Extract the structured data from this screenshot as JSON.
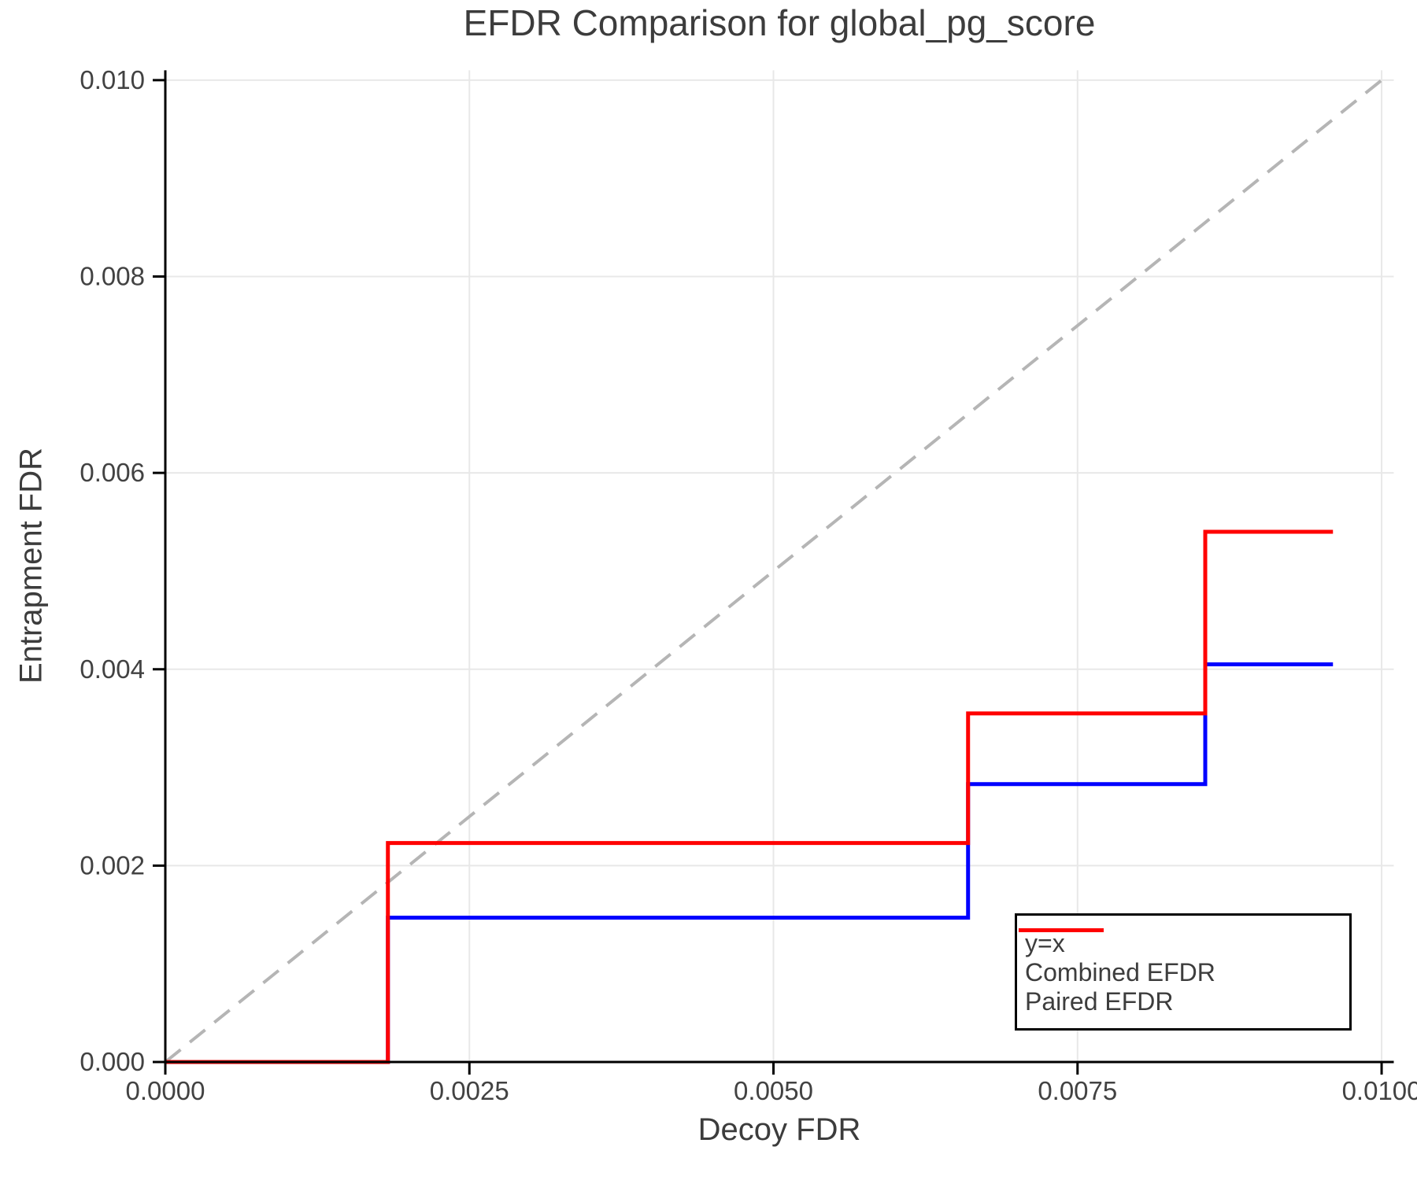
{
  "chart_data": {
    "type": "line",
    "title": "EFDR Comparison for global_pg_score",
    "xlabel": "Decoy FDR",
    "ylabel": "Entrapment FDR",
    "xlim": [
      0,
      0.0101
    ],
    "ylim": [
      0,
      0.0101
    ],
    "grid": true,
    "x_ticks": {
      "values": [
        0,
        0.0025,
        0.005,
        0.0075,
        0.01
      ],
      "labels": [
        "0.0000",
        "0.0025",
        "0.0050",
        "0.0075",
        "0.0100"
      ]
    },
    "y_ticks": {
      "values": [
        0,
        0.002,
        0.004,
        0.006,
        0.008,
        0.01
      ],
      "labels": [
        "0.000",
        "0.002",
        "0.004",
        "0.006",
        "0.008",
        "0.010"
      ]
    },
    "series": [
      {
        "name": "y=x",
        "color": "#b5b5b5",
        "dashed": true,
        "width": 4,
        "x": [
          0,
          0.01
        ],
        "y": [
          0,
          0.01
        ]
      },
      {
        "name": "Combined EFDR",
        "color": "#0000ff",
        "dashed": false,
        "width": 5,
        "x": [
          0,
          0.00183,
          0.00183,
          0.0066,
          0.0066,
          0.00855,
          0.00855,
          0.0096
        ],
        "y": [
          0,
          0,
          0.00147,
          0.00147,
          0.00283,
          0.00283,
          0.00405,
          0.00405
        ]
      },
      {
        "name": "Paired EFDR",
        "color": "#ff0000",
        "dashed": false,
        "width": 5,
        "x": [
          0,
          0.00183,
          0.00183,
          0.0066,
          0.0066,
          0.00855,
          0.00855,
          0.0096
        ],
        "y": [
          0,
          0,
          0.00223,
          0.00223,
          0.00355,
          0.00355,
          0.0054,
          0.0054
        ]
      }
    ],
    "legend": {
      "position": "lower right",
      "entries": [
        {
          "label": "y=x",
          "color": "#b5b5b5",
          "dashed": true
        },
        {
          "label": "Combined EFDR",
          "color": "#0000ff",
          "dashed": false
        },
        {
          "label": "Paired EFDR",
          "color": "#ff0000",
          "dashed": false
        }
      ]
    },
    "colors": {
      "grid": "#e8e8e8",
      "spine": "#000000",
      "tick_label": "#424242",
      "background": "#ffffff"
    }
  }
}
